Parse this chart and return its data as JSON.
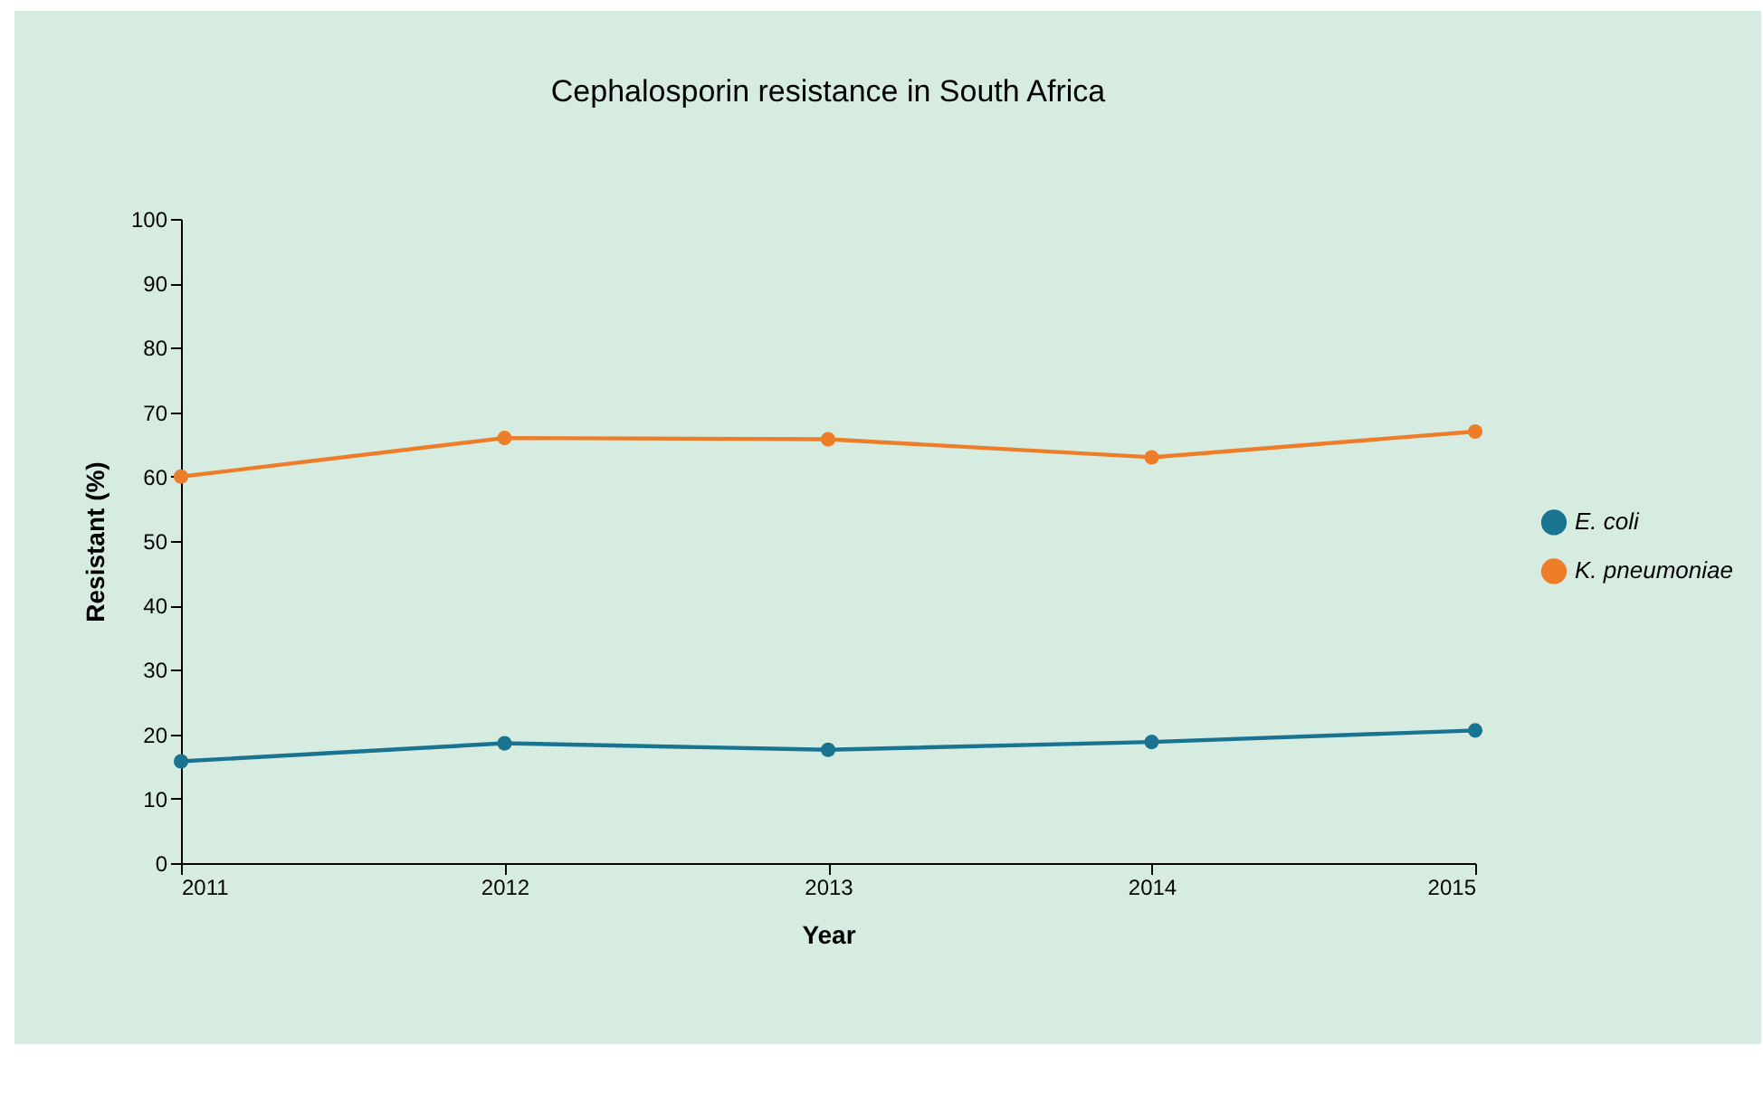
{
  "chart_data": {
    "type": "line",
    "title": "Cephalosporin resistance in South Africa",
    "xlabel": "Year",
    "ylabel": "Resistant (%)",
    "x": [
      2011,
      2012,
      2013,
      2014,
      2015
    ],
    "series": [
      {
        "name": "E. coli",
        "color": "#1a7391",
        "values": [
          15.8,
          18.6,
          17.6,
          18.8,
          20.6
        ]
      },
      {
        "name": "K. pneumoniae",
        "color": "#ee7d2a",
        "values": [
          60,
          66,
          65.8,
          63,
          67
        ]
      }
    ],
    "xlim": [
      2011,
      2015
    ],
    "xticks": [
      2011,
      2012,
      2013,
      2014,
      2015
    ],
    "ylim": [
      0,
      100
    ],
    "yticks": [
      0,
      10,
      20,
      30,
      40,
      50,
      60,
      70,
      80,
      90,
      100
    ],
    "grid": false,
    "legend": "right",
    "marker": "circle",
    "line_style": "solid"
  }
}
